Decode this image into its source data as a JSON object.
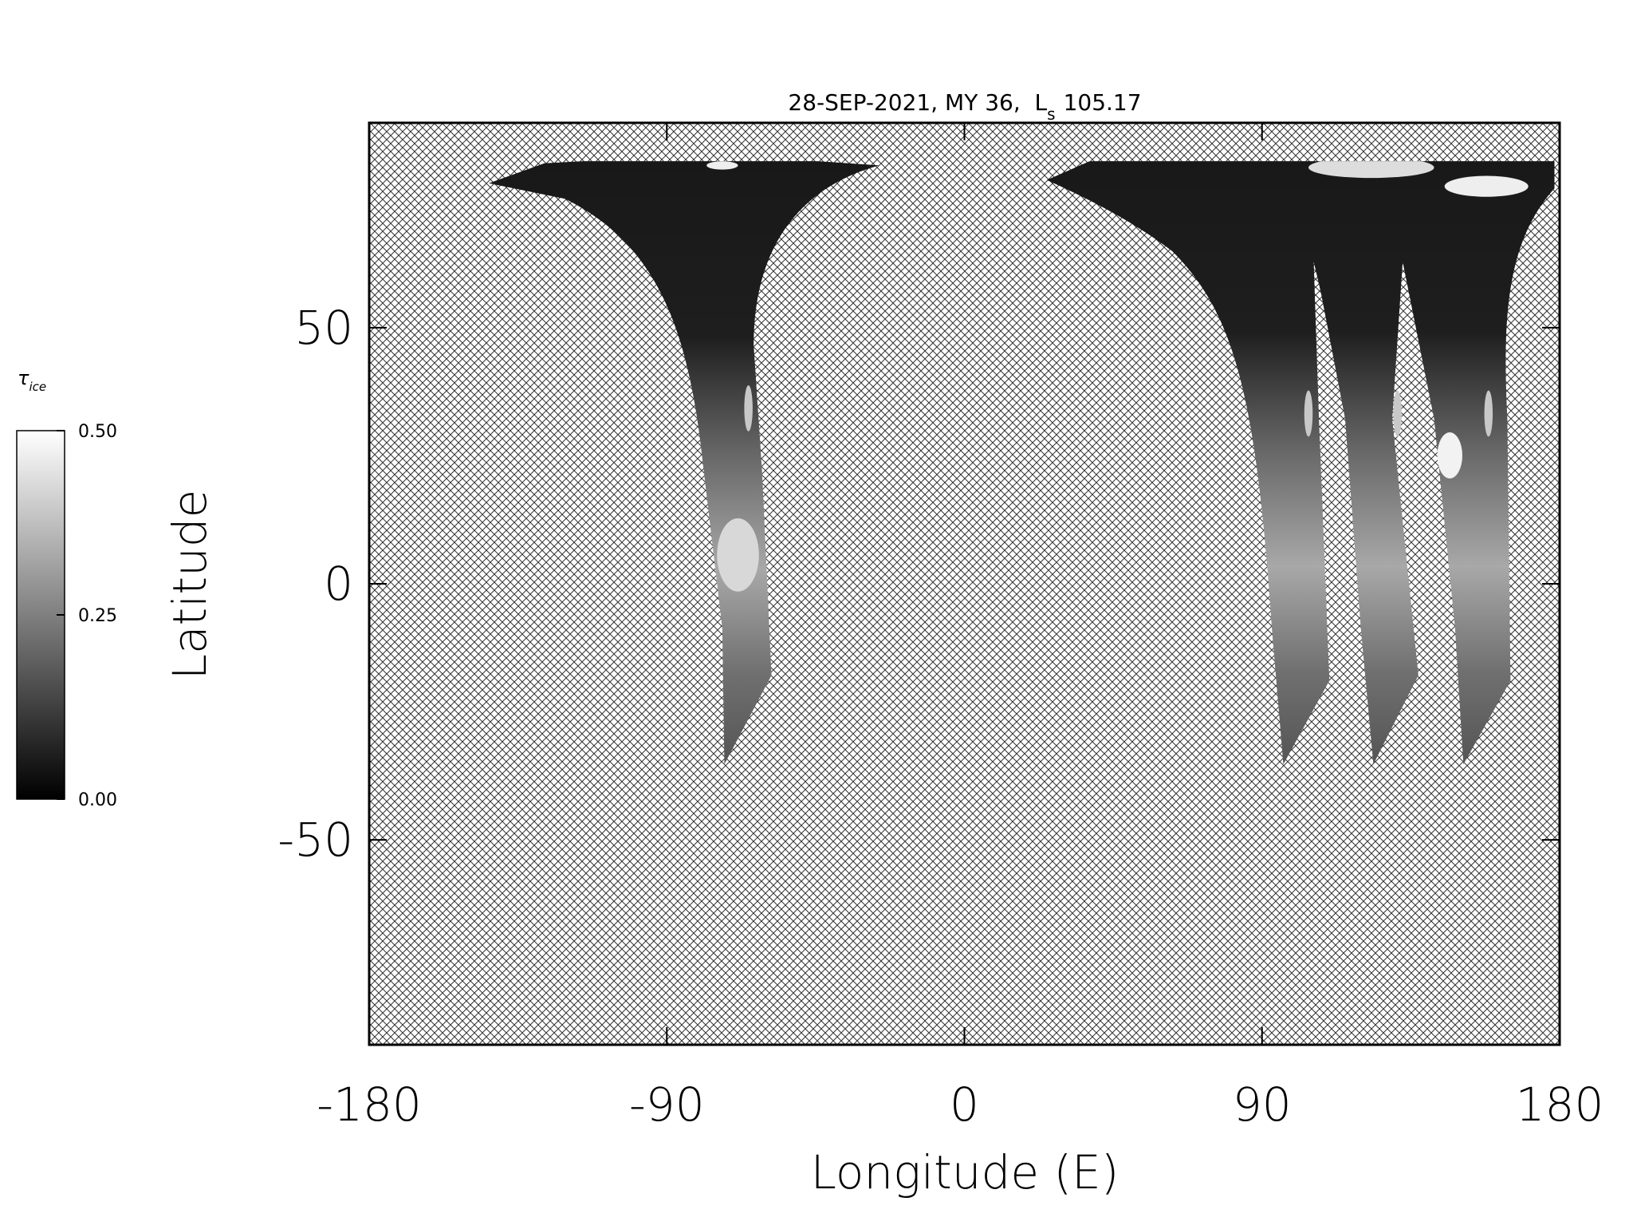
{
  "chart_data": {
    "type": "map",
    "title": "28-SEP-2021, MY 36,  L",
    "title_subscript": "s",
    "title_value": "105.17",
    "xlabel": "Longitude (E)",
    "ylabel": "Latitude",
    "xlim": [
      -180,
      180
    ],
    "xticks": [
      -180,
      -90,
      0,
      90,
      180
    ],
    "ylim": [
      -90,
      90
    ],
    "yticks": [
      -50,
      0,
      50
    ],
    "hatch": true,
    "colorbar": {
      "label": "τ",
      "label_subscript": "ice",
      "lim": [
        0,
        0.5
      ],
      "ticks": [
        {
          "value": 0,
          "label": "0.00"
        },
        0.25,
        {
          "value": 0.5,
          "label": "0.50"
        }
      ],
      "colors": [
        "#000000",
        "#ffffff"
      ]
    }
  }
}
